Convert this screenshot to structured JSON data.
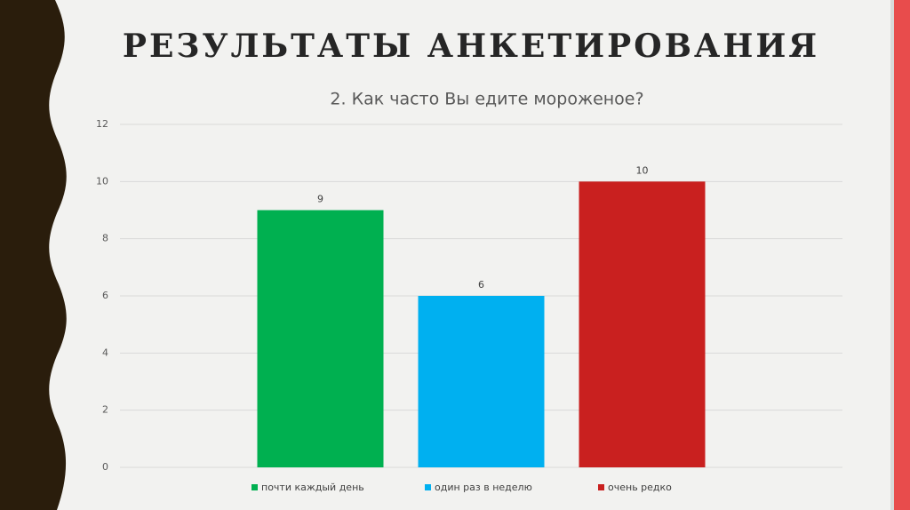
{
  "chart_data": {
    "type": "bar",
    "title": "РЕЗУЛЬТАТЫ АНКЕТИРОВАНИЯ",
    "subtitle": "2. Как часто Вы едите мороженое?",
    "categories": [
      null
    ],
    "series": [
      {
        "name": "почти каждый день",
        "color": "#00b050",
        "values": [
          9
        ]
      },
      {
        "name": "один раз в неделю",
        "color": "#00b0f0",
        "values": [
          6
        ]
      },
      {
        "name": "очень редко",
        "color": "#c9201f",
        "values": [
          10
        ]
      }
    ],
    "ylim": [
      0,
      12
    ],
    "yticks": [
      0,
      2,
      4,
      6,
      8,
      10,
      12
    ],
    "grid": true,
    "legend": "bottom"
  }
}
